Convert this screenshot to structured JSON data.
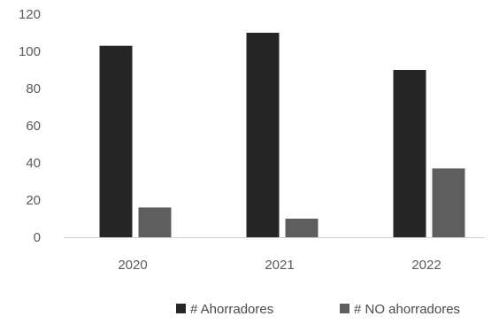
{
  "chart_data": {
    "type": "bar",
    "categories": [
      "2020",
      "2021",
      "2022"
    ],
    "series": [
      {
        "name": "# Ahorradores",
        "values": [
          103,
          110,
          90
        ],
        "color": "#262626"
      },
      {
        "name": "# NO ahorradores",
        "values": [
          16,
          10,
          37
        ],
        "color": "#5e5e5e"
      }
    ],
    "yticks": [
      "0",
      "20",
      "40",
      "60",
      "80",
      "100",
      "120"
    ],
    "ylim": [
      0,
      120
    ],
    "grid": false,
    "legend_position": "bottom",
    "title": "",
    "xlabel": "",
    "ylabel": ""
  }
}
